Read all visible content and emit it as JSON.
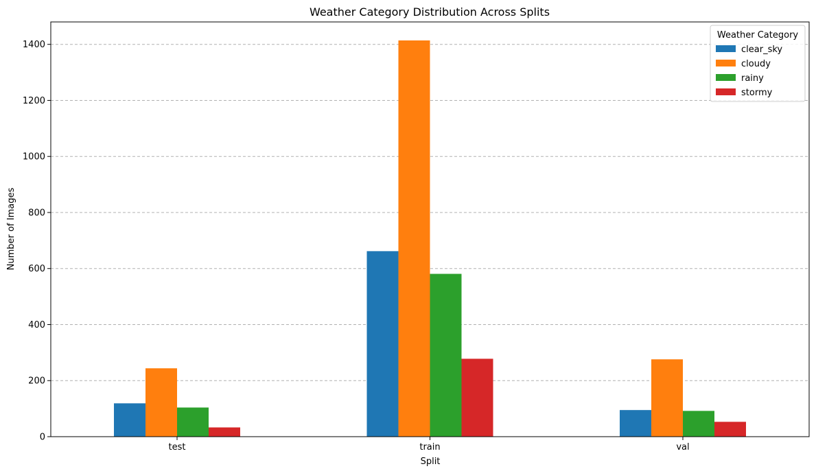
{
  "chart_data": {
    "type": "bar",
    "title": "Weather Category Distribution Across Splits",
    "xlabel": "Split",
    "ylabel": "Number of Images",
    "categories": [
      "test",
      "train",
      "val"
    ],
    "ylim": [
      0,
      1480
    ],
    "yticks": [
      0,
      200,
      400,
      600,
      800,
      1000,
      1200,
      1400
    ],
    "grid": "y-dashed",
    "legend": {
      "title": "Weather Category",
      "placement": "top-right"
    },
    "series": [
      {
        "name": "clear_sky",
        "color": "#1f77b4",
        "values": [
          119,
          662,
          95
        ]
      },
      {
        "name": "cloudy",
        "color": "#ff7f0e",
        "values": [
          244,
          1414,
          276
        ]
      },
      {
        "name": "rainy",
        "color": "#2ca02c",
        "values": [
          104,
          581,
          92
        ]
      },
      {
        "name": "stormy",
        "color": "#d62728",
        "values": [
          33,
          278,
          53
        ]
      }
    ]
  }
}
